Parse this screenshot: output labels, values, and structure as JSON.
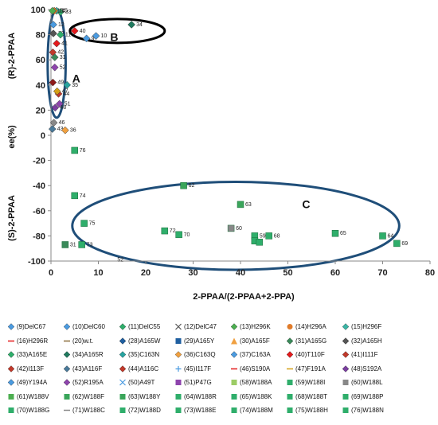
{
  "chart_data": {
    "type": "scatter",
    "title": "",
    "xlabel": "2-PPAA/(2-PPAA+2-PPA)",
    "ylabel": "ee(%)",
    "ylabel_top": "(R)-2-PPAA",
    "ylabel_bottom": "(S)-2-PPAA",
    "xlim": [
      0,
      80
    ],
    "ylim": [
      -100,
      100
    ],
    "xticks": [
      "0",
      "10",
      "20",
      "30",
      "40",
      "50",
      "60",
      "70",
      "80"
    ],
    "yticks": [
      "100",
      "80",
      "60",
      "40",
      "20",
      "0",
      "-20",
      "-40",
      "-60",
      "-80",
      "-100"
    ],
    "grid": false,
    "legend_position": "bottom",
    "regions": [
      {
        "label": "A",
        "cx": 1.2,
        "cy": 57,
        "rx": 1.9,
        "ry": 43
      },
      {
        "label": "B",
        "cx": 14,
        "cy": 83,
        "rx": 10,
        "ry": 9.5
      },
      {
        "label": "C",
        "cx": 39,
        "cy": -72,
        "rx": 34.5,
        "ry": 35
      }
    ],
    "region_label_positions": [
      {
        "label": "A",
        "x": 4.5,
        "y": 42
      },
      {
        "label": "B",
        "x": 12.5,
        "y": 75
      },
      {
        "label": "C",
        "x": 53,
        "y": -58
      }
    ],
    "points": [
      {
        "id": "34",
        "x": 17,
        "y": 88,
        "color": "#1f7a5e"
      },
      {
        "id": "40",
        "x": 5,
        "y": 83,
        "color": "#e41a1c"
      },
      {
        "id": "10",
        "x": 9.5,
        "y": 79,
        "color": "#4b9be0"
      },
      {
        "id": "9",
        "x": 7.5,
        "y": 77,
        "color": "#4b9be0"
      },
      {
        "id": "33",
        "x": 2,
        "y": 98,
        "color": "#2fae6b"
      },
      {
        "id": "15",
        "x": 1.2,
        "y": 99,
        "color": "#3bb5a5"
      },
      {
        "id": "14",
        "x": 0.7,
        "y": 99,
        "color": "#e07b2a"
      },
      {
        "id": "13",
        "x": 0.3,
        "y": 99,
        "color": "#4caf50"
      },
      {
        "id": "12",
        "x": 0.5,
        "y": 88,
        "color": "#4b9be0"
      },
      {
        "id": "32",
        "x": 0.5,
        "y": 81,
        "color": "#555555"
      },
      {
        "id": "11",
        "x": 2,
        "y": 80,
        "color": "#2fae6b"
      },
      {
        "id": "41",
        "x": 1.2,
        "y": 73,
        "color": "#e41a1c"
      },
      {
        "id": "42",
        "x": 0.4,
        "y": 66,
        "color": "#c0392b"
      },
      {
        "id": "31",
        "x": 0.8,
        "y": 62,
        "color": "#3a8a5a"
      },
      {
        "id": "52",
        "x": 0.8,
        "y": 54,
        "color": "#8e44ad"
      },
      {
        "id": "35",
        "x": 3.4,
        "y": 40,
        "color": "#27a3a0"
      },
      {
        "id": "49",
        "x": 0.4,
        "y": 42,
        "color": "#8e1a1a"
      },
      {
        "id": "44",
        "x": 1.6,
        "y": 33,
        "color": "#c0392b"
      },
      {
        "id": "47",
        "x": 1.3,
        "y": 35,
        "color": "#d4a017"
      },
      {
        "id": "51",
        "x": 1.8,
        "y": 25,
        "color": "#8e44ad"
      },
      {
        "id": "48",
        "x": 0.9,
        "y": 22,
        "color": "#7b3fa0"
      },
      {
        "id": "46",
        "x": 0.6,
        "y": 10,
        "color": "#888888"
      },
      {
        "id": "43",
        "x": 0.3,
        "y": 5,
        "color": "#4a7a9a"
      },
      {
        "id": "36",
        "x": 3,
        "y": 4,
        "color": "#f0a040"
      },
      {
        "id": "76",
        "x": 5,
        "y": -12,
        "color": "#2fae6b"
      },
      {
        "id": "62",
        "x": 28,
        "y": -40,
        "color": "#3aa55a"
      },
      {
        "id": "74",
        "x": 5,
        "y": -48,
        "color": "#2fae6b"
      },
      {
        "id": "63",
        "x": 40,
        "y": -55,
        "color": "#3aa55a"
      },
      {
        "id": "75",
        "x": 7,
        "y": -70,
        "color": "#2fae6b"
      },
      {
        "id": "72",
        "x": 24,
        "y": -76,
        "color": "#2fae6b"
      },
      {
        "id": "70",
        "x": 27,
        "y": -79,
        "color": "#2fae6b"
      },
      {
        "id": "60",
        "x": 38,
        "y": -74,
        "color": "#888888"
      },
      {
        "id": "59",
        "x": 43,
        "y": -80,
        "color": "#2fae6b"
      },
      {
        "id": "68",
        "x": 46,
        "y": -80,
        "color": "#2fae6b"
      },
      {
        "id": "65",
        "x": 60,
        "y": -78,
        "color": "#2fae6b"
      },
      {
        "id": "64",
        "x": 70,
        "y": -80,
        "color": "#2fae6b"
      },
      {
        "id": "69",
        "x": 73,
        "y": -86,
        "color": "#2fae6b"
      },
      {
        "id": "",
        "x": 43,
        "y": -84,
        "color": "#2fae6b"
      },
      {
        "id": "",
        "x": 44,
        "y": -85,
        "color": "#2fae6b"
      },
      {
        "id": "73",
        "x": 6.5,
        "y": -87,
        "color": "#2fae6b"
      },
      {
        "id": "31",
        "x": 3,
        "y": -87,
        "color": "#3a8a5a"
      },
      {
        "id": "52",
        "x": 13,
        "y": -99,
        "color": "none"
      }
    ]
  },
  "legend": [
    {
      "label": "(9)DelC67",
      "color": "#4b9be0",
      "shape": "diamond"
    },
    {
      "label": "(10)DelC60",
      "color": "#4b9be0",
      "shape": "diamond"
    },
    {
      "label": "(11)DelC55",
      "color": "#2fae6b",
      "shape": "diamond"
    },
    {
      "label": "(12)DelC47",
      "color": "#555555",
      "shape": "x"
    },
    {
      "label": "(13)H296K",
      "color": "#4caf50",
      "shape": "diamond"
    },
    {
      "label": "(14)H296A",
      "color": "#e07b2a",
      "shape": "circle"
    },
    {
      "label": "(15)H296F",
      "color": "#3bb5a5",
      "shape": "diamond"
    },
    {
      "label": "(16)H296R",
      "color": "#e41a1c",
      "shape": "dash"
    },
    {
      "label": "(20)w.t.",
      "color": "#8a6d3b",
      "shape": "dash"
    },
    {
      "label": "(28)A165W",
      "color": "#1f5fa0",
      "shape": "diamond"
    },
    {
      "label": "(29)A165Y",
      "color": "#1f5fa0",
      "shape": "square"
    },
    {
      "label": "(30)A165F",
      "color": "#f0a040",
      "shape": "triangle"
    },
    {
      "label": "(31)A165G",
      "color": "#3a8a5a",
      "shape": "diamond"
    },
    {
      "label": "(32)A165H",
      "color": "#555555",
      "shape": "diamond"
    },
    {
      "label": "(33)A165E",
      "color": "#2fae6b",
      "shape": "diamond"
    },
    {
      "label": "(34)A165R",
      "color": "#1f7a5e",
      "shape": "diamond"
    },
    {
      "label": "(35)C163N",
      "color": "#27a3a0",
      "shape": "diamond"
    },
    {
      "label": "(36)C163Q",
      "color": "#f0a040",
      "shape": "diamond"
    },
    {
      "label": "(37)C163A",
      "color": "#4b9be0",
      "shape": "diamond"
    },
    {
      "label": "(40)T110F",
      "color": "#e41a1c",
      "shape": "diamond"
    },
    {
      "label": "(41)I111F",
      "color": "#c0392b",
      "shape": "diamond"
    },
    {
      "label": "(42)I113F",
      "color": "#c0392b",
      "shape": "diamond"
    },
    {
      "label": "(43)A116F",
      "color": "#4a7a9a",
      "shape": "diamond"
    },
    {
      "label": "(44)A116C",
      "color": "#c0392b",
      "shape": "diamond"
    },
    {
      "label": "(45)I117F",
      "color": "#4b9be0",
      "shape": "plus"
    },
    {
      "label": "(46)S190A",
      "color": "#e41a1c",
      "shape": "dash"
    },
    {
      "label": "(47)F191A",
      "color": "#d4a017",
      "shape": "dash"
    },
    {
      "label": "(48)S192A",
      "color": "#7b3fa0",
      "shape": "diamond"
    },
    {
      "label": "(49)Y194A",
      "color": "#4b9be0",
      "shape": "diamond"
    },
    {
      "label": "(52)R195A",
      "color": "#8e44ad",
      "shape": "diamond"
    },
    {
      "label": "(50)A49T",
      "color": "#4b9be0",
      "shape": "x"
    },
    {
      "label": "(51)P47G",
      "color": "#8e44ad",
      "shape": "square"
    },
    {
      "label": "(58)W188A",
      "color": "#9ccc65",
      "shape": "square"
    },
    {
      "label": "(59)W188I",
      "color": "#2fae6b",
      "shape": "square"
    },
    {
      "label": "(60)W188L",
      "color": "#888888",
      "shape": "square"
    },
    {
      "label": "(61)W188V",
      "color": "#4caf50",
      "shape": "square"
    },
    {
      "label": "(62)W188F",
      "color": "#3aa55a",
      "shape": "square"
    },
    {
      "label": "(63)W188Y",
      "color": "#3aa55a",
      "shape": "square"
    },
    {
      "label": "(64)W188R",
      "color": "#2fae6b",
      "shape": "square"
    },
    {
      "label": "(65)W188K",
      "color": "#2fae6b",
      "shape": "square"
    },
    {
      "label": "(68)W188T",
      "color": "#2fae6b",
      "shape": "square"
    },
    {
      "label": "(69)W188P",
      "color": "#2fae6b",
      "shape": "square"
    },
    {
      "label": "(70)W188G",
      "color": "#2fae6b",
      "shape": "square"
    },
    {
      "label": "(71)W188C",
      "color": "#888888",
      "shape": "dash"
    },
    {
      "label": "(72)W188D",
      "color": "#2fae6b",
      "shape": "square"
    },
    {
      "label": "(73)W188E",
      "color": "#2fae6b",
      "shape": "square"
    },
    {
      "label": "(74)W188M",
      "color": "#2fae6b",
      "shape": "square"
    },
    {
      "label": "(75)W188H",
      "color": "#2fae6b",
      "shape": "square"
    },
    {
      "label": "(76)W188N",
      "color": "#2fae6b",
      "shape": "square"
    }
  ]
}
